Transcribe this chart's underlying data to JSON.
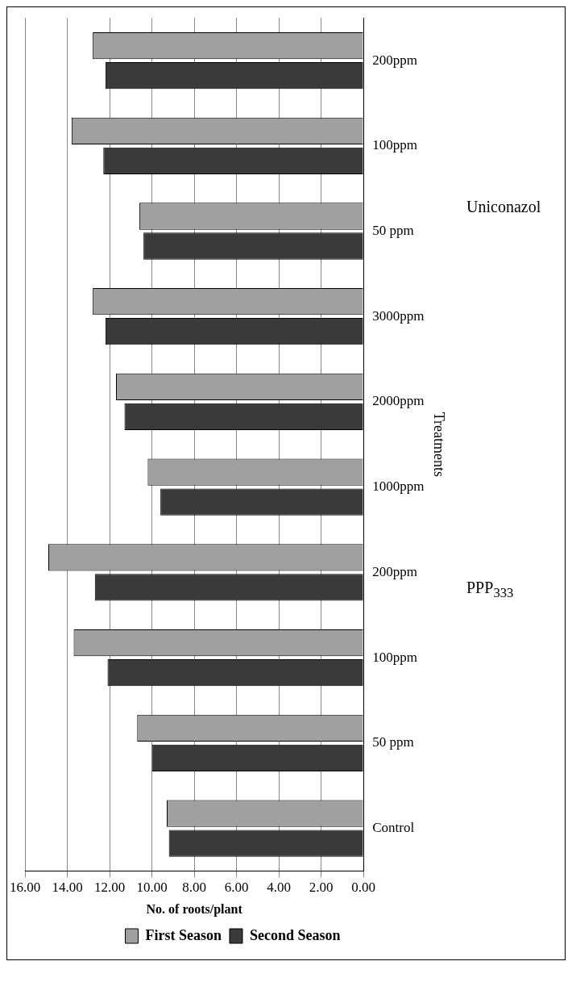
{
  "chart_data": {
    "type": "bar",
    "orientation": "horizontal",
    "xlabel": "No. of roots/plant",
    "ylabel": "Treatments",
    "categories": [
      "200ppm",
      "100ppm",
      "50 ppm",
      "3000ppm",
      "2000ppm",
      "1000ppm",
      "200ppm",
      "100ppm",
      "50 ppm",
      "Control"
    ],
    "series": [
      {
        "name": "First Season",
        "color": "#a0a0a0",
        "values": [
          12.8,
          13.8,
          10.6,
          12.8,
          11.7,
          10.2,
          14.9,
          13.7,
          10.7,
          9.3
        ]
      },
      {
        "name": "Second Season",
        "color": "#3a3a3a",
        "values": [
          12.2,
          12.3,
          10.4,
          12.2,
          11.3,
          9.6,
          12.7,
          12.1,
          10.0,
          9.2
        ]
      }
    ],
    "xlim": [
      16,
      0
    ],
    "xticks": [
      {
        "value": 16,
        "label": "16.00"
      },
      {
        "value": 14,
        "label": "14.00"
      },
      {
        "value": 12,
        "label": "12.00"
      },
      {
        "value": 10,
        "label": "10.00"
      },
      {
        "value": 8,
        "label": "8.00"
      },
      {
        "value": 6,
        "label": "6.00"
      },
      {
        "value": 4,
        "label": "4.00"
      },
      {
        "value": 2,
        "label": "2.00"
      },
      {
        "value": 0,
        "label": "0.00"
      }
    ],
    "grid": "x",
    "legend": "bottom",
    "annotations": [
      "Uniconazol",
      "PPP$_{333}$"
    ]
  }
}
